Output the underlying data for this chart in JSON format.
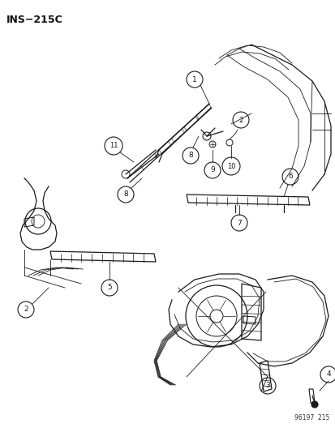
{
  "title": "INS−215C",
  "footer": "96197  215",
  "bg_color": "#ffffff",
  "label_color": "#111111",
  "line_color": "#1a1a1a",
  "figsize": [
    4.14,
    5.33
  ],
  "dpi": 100
}
